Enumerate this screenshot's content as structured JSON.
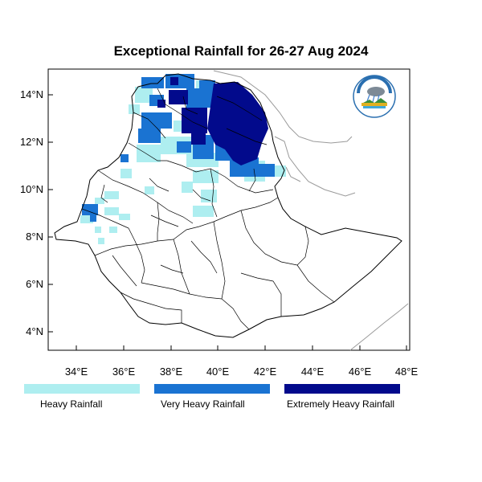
{
  "title": "Exceptional Rainfall for 26-27 Aug 2024",
  "y_ticks": [
    "14°N",
    "12°N",
    "10°N",
    "8°N",
    "6°N",
    "4°N"
  ],
  "x_ticks": [
    "34°E",
    "36°E",
    "38°E",
    "40°E",
    "42°E",
    "44°E",
    "46°E",
    "48°E"
  ],
  "legend": [
    {
      "label": "Heavy Rainfall",
      "color": "#aeeef0"
    },
    {
      "label": "Very Heavy Rainfall",
      "color": "#1a73d2"
    },
    {
      "label": "Extremely Heavy Rainfall",
      "color": "#020a8c"
    }
  ],
  "colors": {
    "border": "#000000",
    "neighbor_border": "#9a9a9a"
  },
  "logo_icon": "meteorology-agency-logo"
}
